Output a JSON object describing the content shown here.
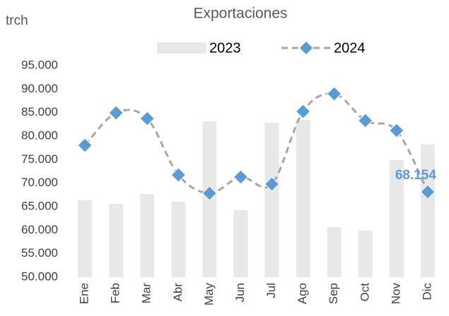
{
  "chart_data": {
    "type": "bar_line",
    "title": "Exportaciones",
    "y_label": "trch",
    "categories": [
      "Ene",
      "Feb",
      "Mar",
      "Abr",
      "May",
      "Jun",
      "Jul",
      "Ago",
      "Sep",
      "Oct",
      "Nov",
      "Dic"
    ],
    "series": [
      {
        "name": "2023",
        "type": "bar",
        "color": "#e8e8e8",
        "values": [
          66350,
          65600,
          67700,
          66050,
          83150,
          64250,
          82850,
          83450,
          60650,
          59900,
          74900,
          78250
        ]
      },
      {
        "name": "2024",
        "type": "line",
        "color": "#5b9bd5",
        "line_color": "#a6a6a6",
        "values": [
          78050,
          84950,
          83750,
          71750,
          67850,
          71300,
          69800,
          85250,
          89000,
          83300,
          81200,
          68154
        ],
        "value_labels": [
          null,
          null,
          null,
          null,
          null,
          null,
          null,
          null,
          null,
          null,
          null,
          "68.154"
        ]
      }
    ],
    "ylim": [
      50000,
      95000
    ],
    "yticks": [
      {
        "value": 50000,
        "label": "50.000"
      },
      {
        "value": 55000,
        "label": "55.000"
      },
      {
        "value": 60000,
        "label": "60.000"
      },
      {
        "value": 65000,
        "label": "65.000"
      },
      {
        "value": 70000,
        "label": "70.000"
      },
      {
        "value": 75000,
        "label": "75.000"
      },
      {
        "value": 80000,
        "label": "80.000"
      },
      {
        "value": 85000,
        "label": "85.000"
      },
      {
        "value": 90000,
        "label": "90.000"
      },
      {
        "value": 95000,
        "label": "95.000"
      }
    ],
    "grid": false,
    "legend": "top"
  }
}
